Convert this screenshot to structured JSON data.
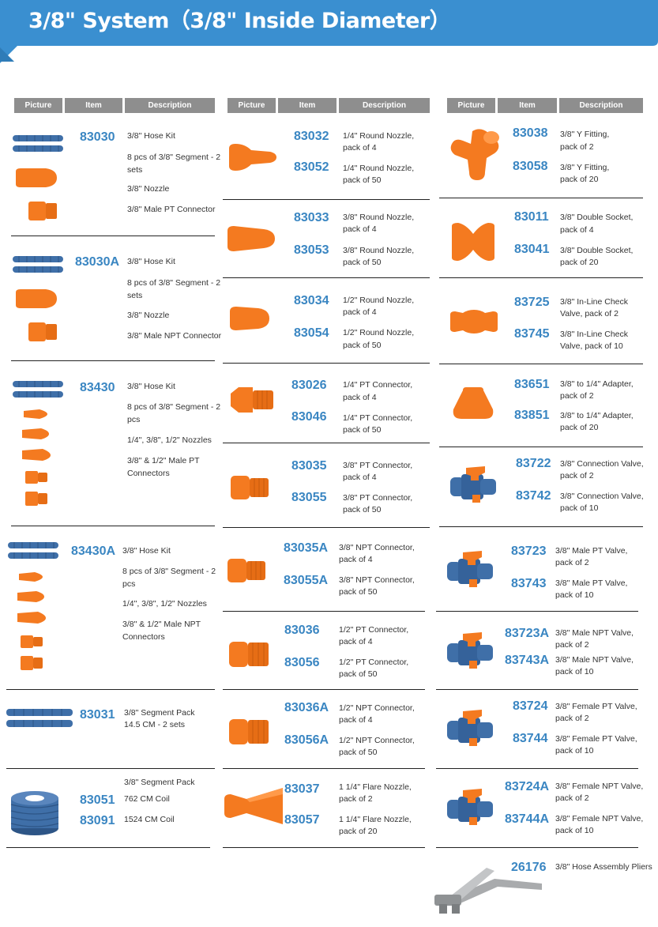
{
  "page": {
    "title": "3/8\" System（3/8\" Inside Diameter）",
    "accent": "#3a8fd0",
    "number_color": "#3a86c2"
  },
  "columns": [
    {
      "headers": [
        "Picture",
        "Item",
        "Description"
      ],
      "groups": [
        {
          "picture": "hose-kit-icon",
          "entries": [
            {
              "item": "83030",
              "lines": [
                "3/8\" Hose Kit",
                "8 pcs of 3/8\" Segment - 2 sets",
                "3/8\" Nozzle",
                "3/8\" Male PT Connector"
              ]
            }
          ]
        },
        {
          "picture": "hose-kit-icon",
          "entries": [
            {
              "item": "83030A",
              "lines": [
                "3/8\" Hose Kit",
                "8 pcs of 3/8\" Segment - 2 sets",
                "3/8\" Nozzle",
                "3/8\" Male NPT Connector"
              ]
            }
          ]
        },
        {
          "picture": "hose-kit-multi-icon",
          "entries": [
            {
              "item": "83430",
              "lines": [
                "3/8\" Hose Kit",
                "8 pcs of 3/8\" Segment - 2 pcs",
                "1/4\", 3/8\", 1/2\" Nozzles",
                "3/8\" & 1/2\" Male PT Connectors"
              ]
            }
          ]
        },
        {
          "picture": "hose-kit-multi-icon",
          "entries": [
            {
              "item": "83430A",
              "lines": [
                "3/8\" Hose Kit",
                "8 pcs of 3/8\" Segment - 2 pcs",
                "1/4\", 3/8\", 1/2\" Nozzles",
                "3/8\" & 1/2\" Male NPT Connectors"
              ]
            }
          ]
        },
        {
          "picture": "segment-pack-icon",
          "entries": [
            {
              "item": "83031",
              "lines": [
                "3/8\" Segment Pack",
                "14.5 CM - 2 sets"
              ]
            }
          ]
        },
        {
          "picture": "coil-icon",
          "heading": "3/8\" Segment Pack",
          "entries": [
            {
              "item": "83051",
              "lines": [
                "762 CM Coil"
              ]
            },
            {
              "item": "83091",
              "lines": [
                "1524 CM Coil"
              ]
            }
          ]
        }
      ]
    },
    {
      "headers": [
        "Picture",
        "Item",
        "Description"
      ],
      "groups": [
        {
          "picture": "round-nozzle-small-icon",
          "entries": [
            {
              "item": "83032",
              "lines": [
                "1/4\" Round Nozzle,",
                "pack of 4"
              ]
            },
            {
              "item": "83052",
              "lines": [
                "1/4\" Round Nozzle,",
                "pack of 50"
              ]
            }
          ]
        },
        {
          "picture": "round-nozzle-medium-icon",
          "entries": [
            {
              "item": "83033",
              "lines": [
                "3/8\" Round Nozzle,",
                "pack of 4"
              ]
            },
            {
              "item": "83053",
              "lines": [
                "3/8\" Round Nozzle,",
                "pack of 50"
              ]
            }
          ]
        },
        {
          "picture": "round-nozzle-large-icon",
          "entries": [
            {
              "item": "83034",
              "lines": [
                "1/2\" Round Nozzle,",
                "pack of 4"
              ]
            },
            {
              "item": "83054",
              "lines": [
                "1/2\" Round Nozzle,",
                "pack of 50"
              ]
            }
          ]
        },
        {
          "picture": "pt-connector-icon",
          "entries": [
            {
              "item": "83026",
              "lines": [
                "1/4\" PT Connector,",
                "pack of 4"
              ]
            },
            {
              "item": "83046",
              "lines": [
                "1/4\" PT Connector,",
                "pack of 50"
              ]
            }
          ]
        },
        {
          "picture": "pt-connector-icon",
          "entries": [
            {
              "item": "83035",
              "lines": [
                "3/8\" PT Connector,",
                "pack of 4"
              ]
            },
            {
              "item": "83055",
              "lines": [
                "3/8\" PT Connector,",
                "pack of 50"
              ]
            }
          ]
        },
        {
          "picture": "npt-connector-icon",
          "entries": [
            {
              "item": "83035A",
              "lines": [
                "3/8\" NPT Connector,",
                "pack of 4"
              ]
            },
            {
              "item": "83055A",
              "lines": [
                "3/8\" NPT Connector,",
                "pack of 50"
              ]
            }
          ]
        },
        {
          "picture": "pt-connector-large-icon",
          "entries": [
            {
              "item": "83036",
              "lines": [
                "1/2\" PT Connector,",
                "pack of 4"
              ]
            },
            {
              "item": "83056",
              "lines": [
                "1/2\" PT Connector,",
                "pack of 50"
              ]
            }
          ]
        },
        {
          "picture": "npt-connector-large-icon",
          "entries": [
            {
              "item": "83036A",
              "lines": [
                "1/2\" NPT Connector,",
                "pack of 4"
              ]
            },
            {
              "item": "83056A",
              "lines": [
                "1/2\" NPT Connector,",
                "pack of 50"
              ]
            }
          ]
        },
        {
          "picture": "flare-nozzle-icon",
          "entries": [
            {
              "item": "83037",
              "lines": [
                "1 1/4\" Flare Nozzle,",
                "pack of 2"
              ]
            },
            {
              "item": "83057",
              "lines": [
                "1 1/4\" Flare Nozzle,",
                "pack of 20"
              ]
            }
          ]
        }
      ]
    },
    {
      "headers": [
        "Picture",
        "Item",
        "Description"
      ],
      "groups": [
        {
          "picture": "y-fitting-icon",
          "entries": [
            {
              "item": "83038",
              "lines": [
                "3/8\" Y Fitting,",
                "pack of 2"
              ]
            },
            {
              "item": "83058",
              "lines": [
                "3/8\" Y Fitting,",
                "pack of 20"
              ]
            }
          ]
        },
        {
          "picture": "double-socket-icon",
          "entries": [
            {
              "item": "83011",
              "lines": [
                "3/8\" Double Socket,",
                "pack of 4"
              ]
            },
            {
              "item": "83041",
              "lines": [
                "3/8\" Double Socket,",
                "pack of 20"
              ]
            }
          ]
        },
        {
          "picture": "check-valve-icon",
          "entries": [
            {
              "item": "83725",
              "lines": [
                "3/8\" In-Line Check",
                "Valve, pack of 2"
              ]
            },
            {
              "item": "83745",
              "lines": [
                "3/8\" In-Line Check",
                "Valve, pack of 10"
              ]
            }
          ]
        },
        {
          "picture": "adapter-icon",
          "entries": [
            {
              "item": "83651",
              "lines": [
                "3/8\" to 1/4\" Adapter,",
                "pack of 2"
              ]
            },
            {
              "item": "83851",
              "lines": [
                "3/8\" to 1/4\" Adapter,",
                "pack of 20"
              ]
            }
          ]
        },
        {
          "picture": "valve-icon",
          "entries": [
            {
              "item": "83722",
              "lines": [
                "3/8\" Connection Valve,",
                "pack of 2"
              ]
            },
            {
              "item": "83742",
              "lines": [
                "3/8\" Connection Valve,",
                "pack of 10"
              ]
            }
          ]
        },
        {
          "picture": "valve-icon",
          "entries": [
            {
              "item": "83723",
              "lines": [
                "3/8\" Male PT Valve,",
                "pack of 2"
              ]
            },
            {
              "item": "83743",
              "lines": [
                "3/8\" Male PT Valve,",
                "pack of 10"
              ]
            }
          ]
        },
        {
          "picture": "valve-icon",
          "entries": [
            {
              "item": "83723A",
              "lines": [
                "3/8\" Male NPT Valve,",
                "pack of 2"
              ]
            },
            {
              "item": "83743A",
              "lines": [
                "3/8\" Male NPT Valve,",
                "pack of 10"
              ]
            }
          ]
        },
        {
          "picture": "valve-icon",
          "entries": [
            {
              "item": "83724",
              "lines": [
                "3/8\" Female PT Valve,",
                "pack of 2"
              ]
            },
            {
              "item": "83744",
              "lines": [
                "3/8\" Female PT Valve,",
                "pack of 10"
              ]
            }
          ]
        },
        {
          "picture": "valve-icon",
          "entries": [
            {
              "item": "83724A",
              "lines": [
                "3/8\" Female NPT Valve,",
                "pack of 2"
              ]
            },
            {
              "item": "83744A",
              "lines": [
                "3/8\" Female NPT Valve,",
                "pack of 10"
              ]
            }
          ]
        },
        {
          "picture": "pliers-icon",
          "entries": [
            {
              "item": "26176",
              "lines": [
                "3/8\" Hose Assembly Pliers"
              ]
            }
          ]
        }
      ]
    }
  ]
}
